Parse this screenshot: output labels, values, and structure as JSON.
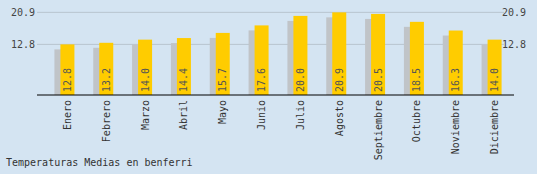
{
  "chart_data": {
    "type": "bar",
    "title": "Temperaturas Medias en benferri",
    "categories": [
      "Enero",
      "Febrero",
      "Marzo",
      "Abril",
      "Mayo",
      "Junio",
      "Julio",
      "Agosto",
      "Septiembre",
      "Octubre",
      "Noviembre",
      "Diciembre"
    ],
    "values": [
      12.8,
      13.2,
      14.0,
      14.4,
      15.7,
      17.6,
      20.0,
      20.9,
      20.5,
      18.5,
      16.3,
      14.0
    ],
    "value_labels": [
      "12.8",
      "13.2",
      "14.0",
      "14.4",
      "15.7",
      "17.6",
      "20.0",
      "20.9",
      "20.5",
      "18.5",
      "16.3",
      "14.0"
    ],
    "color": "#ffcc00",
    "ylim": [
      0,
      22
    ],
    "yticks": [
      12.8,
      20.9
    ],
    "grid": true,
    "data_labels": true
  }
}
